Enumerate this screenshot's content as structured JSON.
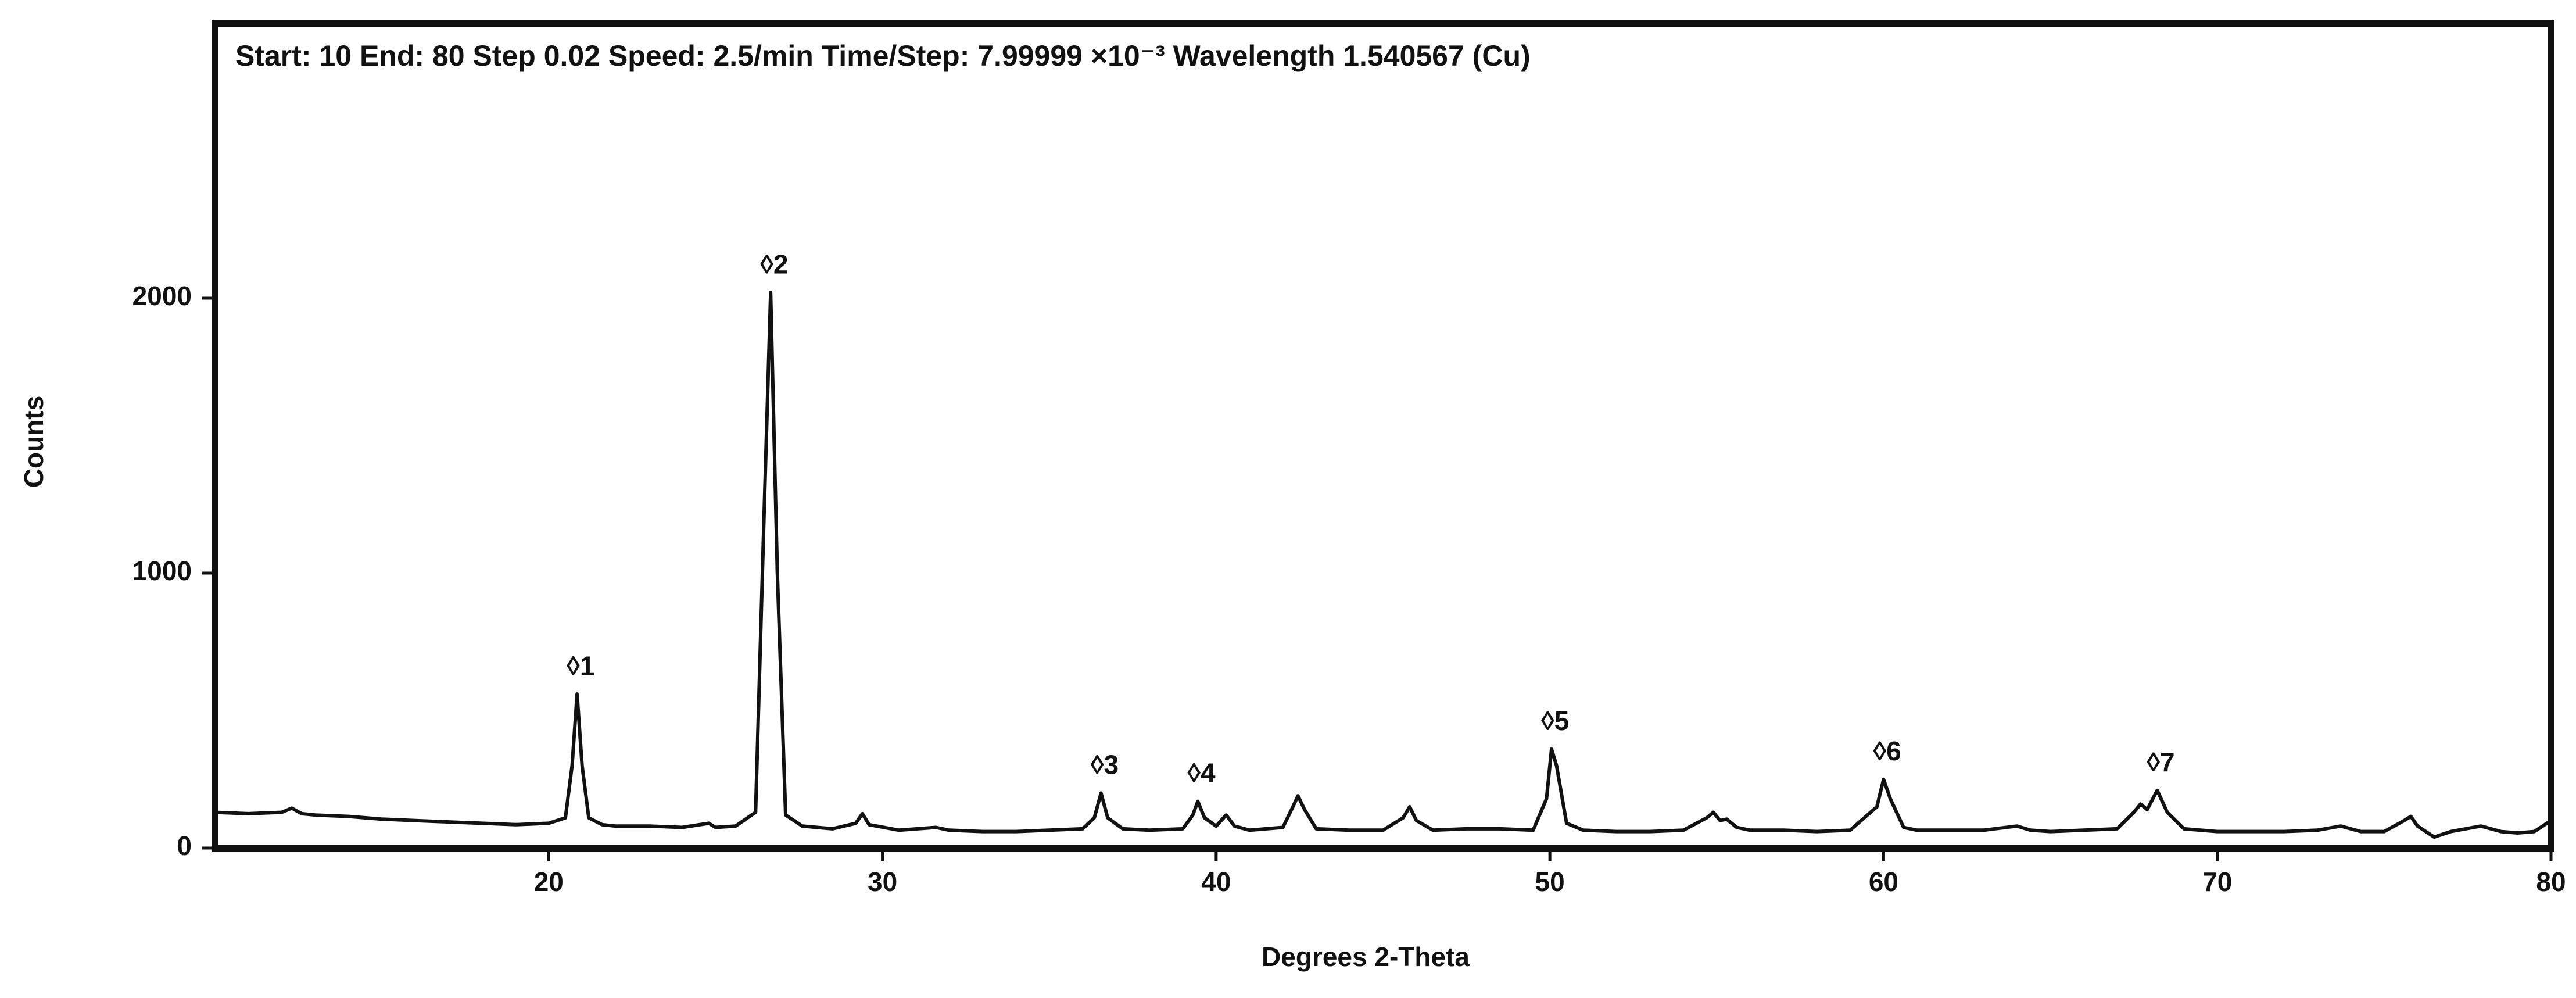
{
  "chart_data": {
    "type": "line",
    "title": "Start: 10 End: 80 Step 0.02 Speed: 2.5/min Time/Step: 7.99999 ×10⁻³  Wavelength 1.540567 (Cu)",
    "x_label": "Degrees 2-Theta",
    "y_label": "Counts",
    "xlim": [
      10,
      80
    ],
    "ylim": [
      0,
      3000
    ],
    "xticks": [
      20,
      30,
      40,
      50,
      60,
      70,
      80
    ],
    "yticks": [
      0,
      1000,
      2000
    ],
    "series": [
      {
        "color": "#111111",
        "x": [
          10,
          11,
          12,
          12.3,
          12.6,
          13,
          14,
          15,
          16,
          17,
          18,
          19,
          20,
          20.5,
          20.7,
          20.85,
          21.0,
          21.2,
          21.6,
          22,
          23,
          24,
          24.8,
          25,
          25.6,
          26.2,
          26.45,
          26.65,
          26.85,
          27.1,
          27.6,
          28.5,
          29.2,
          29.4,
          29.6,
          30.5,
          31.6,
          32,
          33,
          34,
          35,
          36,
          36.35,
          36.55,
          36.75,
          37.2,
          38,
          39,
          39.3,
          39.45,
          39.65,
          40,
          40.3,
          40.55,
          41,
          42,
          42.3,
          42.45,
          42.65,
          43,
          44,
          45,
          45.6,
          45.8,
          46,
          46.5,
          47.5,
          48.5,
          49.5,
          49.9,
          50.05,
          50.2,
          50.5,
          51,
          52,
          53,
          54,
          54.7,
          54.9,
          55.1,
          55.3,
          55.6,
          56,
          57,
          58,
          59,
          59.8,
          60.0,
          60.2,
          60.6,
          61,
          62,
          63,
          64,
          64.4,
          65,
          66,
          67,
          67.5,
          67.7,
          67.9,
          68.2,
          68.5,
          69,
          70,
          71,
          72,
          73,
          73.7,
          74.3,
          75,
          75.6,
          75.8,
          76,
          76.5,
          77,
          77.9,
          78.5,
          79,
          79.5,
          80
        ],
        "values": [
          130,
          125,
          130,
          145,
          125,
          120,
          115,
          105,
          100,
          95,
          90,
          85,
          90,
          110,
          300,
          560,
          300,
          110,
          85,
          80,
          80,
          75,
          90,
          75,
          80,
          130,
          1200,
          2020,
          1000,
          120,
          80,
          70,
          90,
          125,
          85,
          65,
          75,
          65,
          60,
          60,
          65,
          70,
          110,
          200,
          110,
          70,
          65,
          70,
          120,
          170,
          110,
          80,
          120,
          80,
          65,
          75,
          150,
          190,
          140,
          70,
          65,
          65,
          110,
          150,
          100,
          65,
          70,
          70,
          65,
          180,
          360,
          300,
          90,
          65,
          60,
          60,
          65,
          110,
          130,
          100,
          105,
          75,
          65,
          65,
          60,
          65,
          150,
          250,
          180,
          75,
          65,
          65,
          65,
          80,
          65,
          60,
          65,
          70,
          130,
          160,
          140,
          210,
          130,
          70,
          60,
          60,
          60,
          65,
          80,
          60,
          60,
          100,
          115,
          80,
          40,
          60,
          80,
          60,
          55,
          60,
          100
        ]
      }
    ],
    "annotations": [
      {
        "text": "◊1",
        "x": 20.85
      },
      {
        "text": "◊2",
        "x": 26.65
      },
      {
        "text": "◊3",
        "x": 36.55
      },
      {
        "text": "◊4",
        "x": 39.45
      },
      {
        "text": "◊5",
        "x": 50.05
      },
      {
        "text": "◊6",
        "x": 60.0
      },
      {
        "text": "◊7",
        "x": 68.2
      }
    ]
  }
}
